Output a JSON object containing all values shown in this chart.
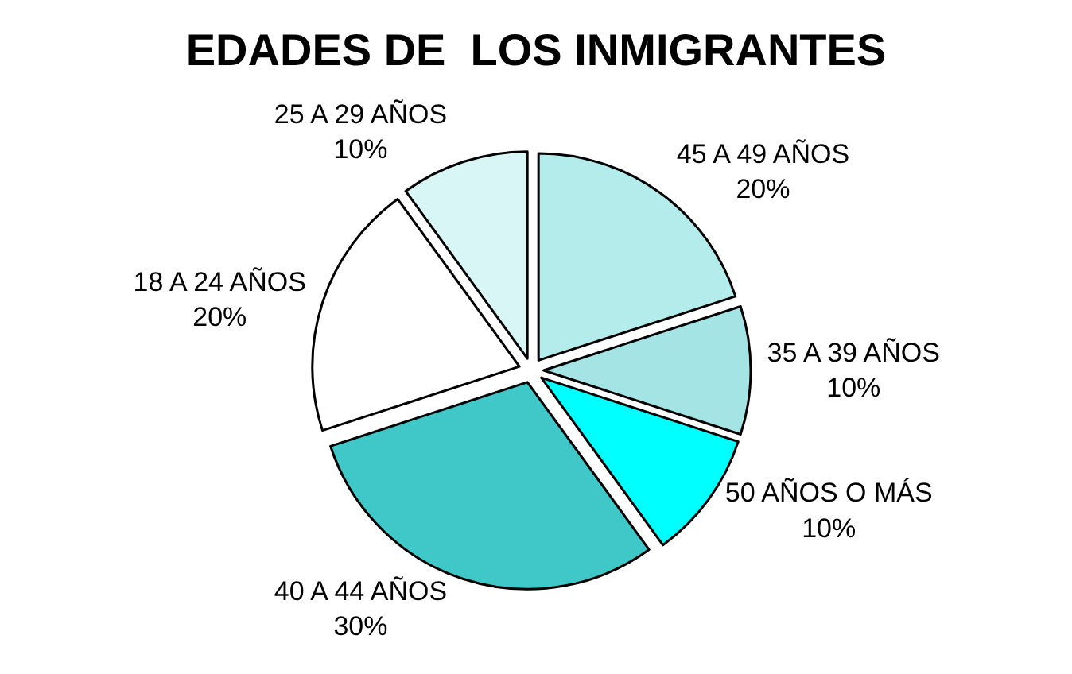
{
  "chart_data": {
    "type": "pie",
    "title": "EDADES DE  LOS INMIGRANTES",
    "categories": [
      "45 A 49 AÑOS",
      "35 A 39 AÑOS",
      "50 AÑOS O MÁS",
      "40 A 44 AÑOS",
      "18 A 24 AÑOS",
      "25 A 29 AÑOS"
    ],
    "values": [
      20,
      10,
      10,
      30,
      20,
      10
    ],
    "value_labels": [
      "20%",
      "10%",
      "10%",
      "30%",
      "20%",
      "10%"
    ],
    "colors": [
      "#b4ecec",
      "#a4e4e4",
      "#00ffff",
      "#40c8c8",
      "#ffffff",
      "#d8f6f6"
    ],
    "legend": false
  }
}
